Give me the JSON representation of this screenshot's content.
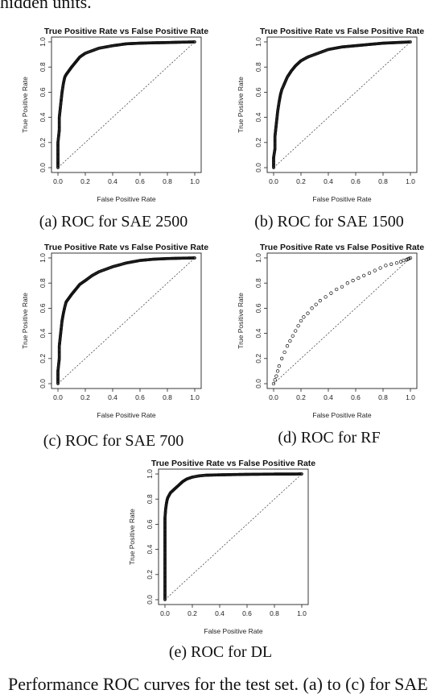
{
  "page": {
    "fragment_top": "hidden units.",
    "fragment_bottom": "Performance ROC curves for the test set. (a) to (c) for SAE"
  },
  "chart_data": [
    {
      "type": "scatter",
      "title": "True Positive Rate vs False Positive Rate",
      "xlabel": "False Positive Rate",
      "ylabel": "True Positive Rate",
      "caption": "(a) ROC for SAE 2500",
      "xlim": [
        0,
        1
      ],
      "ylim": [
        0,
        1
      ],
      "xticks": [
        "0.0",
        "0.2",
        "0.4",
        "0.6",
        "0.8",
        "1.0"
      ],
      "yticks": [
        "0.0",
        "0.2",
        "0.4",
        "0.6",
        "0.8",
        "1.0"
      ],
      "diagonal": true,
      "series": [
        {
          "x": [
            0.0,
            0.0,
            0.0,
            0.01,
            0.01,
            0.02,
            0.03,
            0.04,
            0.05,
            0.06,
            0.08,
            0.1,
            0.13,
            0.16,
            0.2,
            0.25,
            0.3,
            0.35,
            0.4,
            0.5,
            0.6,
            0.7,
            0.8,
            0.9,
            1.0
          ],
          "y": [
            0.0,
            0.1,
            0.2,
            0.3,
            0.4,
            0.5,
            0.6,
            0.67,
            0.72,
            0.74,
            0.77,
            0.8,
            0.84,
            0.88,
            0.91,
            0.93,
            0.95,
            0.96,
            0.97,
            0.985,
            0.99,
            0.993,
            0.995,
            0.998,
            1.0
          ],
          "marker": "open-circle",
          "density": "dense"
        }
      ]
    },
    {
      "type": "scatter",
      "title": "True Positive Rate vs False Positive Rate",
      "xlabel": "False Positive Rate",
      "ylabel": "True Positive Rate",
      "caption": "(b) ROC for SAE 1500",
      "xlim": [
        0,
        1
      ],
      "ylim": [
        0,
        1
      ],
      "xticks": [
        "0.0",
        "0.2",
        "0.4",
        "0.6",
        "0.8",
        "1.0"
      ],
      "yticks": [
        "0.0",
        "0.2",
        "0.4",
        "0.6",
        "0.8",
        "1.0"
      ],
      "diagonal": true,
      "series": [
        {
          "x": [
            0.0,
            0.0,
            0.01,
            0.01,
            0.02,
            0.03,
            0.04,
            0.05,
            0.06,
            0.08,
            0.1,
            0.13,
            0.16,
            0.2,
            0.25,
            0.3,
            0.35,
            0.4,
            0.5,
            0.6,
            0.7,
            0.8,
            0.9,
            1.0
          ],
          "y": [
            0.0,
            0.08,
            0.15,
            0.25,
            0.35,
            0.45,
            0.52,
            0.58,
            0.62,
            0.67,
            0.72,
            0.77,
            0.81,
            0.85,
            0.88,
            0.9,
            0.92,
            0.94,
            0.96,
            0.97,
            0.98,
            0.99,
            0.995,
            1.0
          ],
          "marker": "open-circle",
          "density": "dense"
        }
      ]
    },
    {
      "type": "scatter",
      "title": "True Positive Rate vs False Positive Rate",
      "xlabel": "False Positive Rate",
      "ylabel": "True Positive Rate",
      "caption": "(c) ROC for SAE 700",
      "xlim": [
        0,
        1
      ],
      "ylim": [
        0,
        1
      ],
      "xticks": [
        "0.0",
        "0.2",
        "0.4",
        "0.6",
        "0.8",
        "1.0"
      ],
      "yticks": [
        "0.0",
        "0.2",
        "0.4",
        "0.6",
        "0.8",
        "1.0"
      ],
      "diagonal": true,
      "series": [
        {
          "x": [
            0.0,
            0.0,
            0.01,
            0.01,
            0.02,
            0.03,
            0.04,
            0.05,
            0.06,
            0.08,
            0.1,
            0.13,
            0.16,
            0.2,
            0.25,
            0.3,
            0.35,
            0.4,
            0.5,
            0.6,
            0.7,
            0.8,
            0.9,
            1.0
          ],
          "y": [
            0.0,
            0.1,
            0.2,
            0.3,
            0.4,
            0.5,
            0.56,
            0.61,
            0.65,
            0.68,
            0.71,
            0.75,
            0.79,
            0.82,
            0.86,
            0.89,
            0.91,
            0.93,
            0.96,
            0.98,
            0.99,
            0.995,
            0.998,
            1.0
          ],
          "marker": "open-circle",
          "density": "dense"
        }
      ]
    },
    {
      "type": "scatter",
      "title": "True Positive Rate vs False Positive Rate",
      "xlabel": "False Positive Rate",
      "ylabel": "True Positive Rate",
      "caption": "(d) ROC for RF",
      "xlim": [
        0,
        1
      ],
      "ylim": [
        0,
        1
      ],
      "xticks": [
        "0.0",
        "0.2",
        "0.4",
        "0.6",
        "0.8",
        "1.0"
      ],
      "yticks": [
        "0.0",
        "0.2",
        "0.4",
        "0.6",
        "0.8",
        "1.0"
      ],
      "diagonal": true,
      "series": [
        {
          "x": [
            0.0,
            0.01,
            0.02,
            0.03,
            0.04,
            0.06,
            0.08,
            0.1,
            0.12,
            0.14,
            0.16,
            0.18,
            0.2,
            0.22,
            0.25,
            0.28,
            0.31,
            0.34,
            0.38,
            0.42,
            0.46,
            0.5,
            0.54,
            0.58,
            0.62,
            0.66,
            0.7,
            0.74,
            0.78,
            0.82,
            0.86,
            0.9,
            0.93,
            0.95,
            0.97,
            0.98,
            0.99,
            1.0
          ],
          "y": [
            0.0,
            0.03,
            0.06,
            0.1,
            0.14,
            0.2,
            0.25,
            0.3,
            0.34,
            0.38,
            0.42,
            0.46,
            0.5,
            0.53,
            0.56,
            0.6,
            0.63,
            0.66,
            0.69,
            0.72,
            0.75,
            0.77,
            0.8,
            0.82,
            0.84,
            0.86,
            0.88,
            0.9,
            0.92,
            0.94,
            0.95,
            0.96,
            0.97,
            0.98,
            0.985,
            0.99,
            0.995,
            1.0
          ],
          "marker": "open-circle",
          "density": "sparse"
        }
      ]
    },
    {
      "type": "scatter",
      "title": "True Positive Rate vs False Positive Rate",
      "xlabel": "False Positive Rate",
      "ylabel": "True Positive Rate",
      "caption": "(e) ROC for DL",
      "xlim": [
        0,
        1
      ],
      "ylim": [
        0,
        1
      ],
      "xticks": [
        "0.0",
        "0.2",
        "0.4",
        "0.6",
        "0.8",
        "1.0"
      ],
      "yticks": [
        "0.0",
        "0.2",
        "0.4",
        "0.6",
        "0.8",
        "1.0"
      ],
      "diagonal": true,
      "series": [
        {
          "x": [
            0.0,
            0.0,
            0.0,
            0.0,
            0.0,
            0.005,
            0.01,
            0.015,
            0.02,
            0.03,
            0.04,
            0.06,
            0.08,
            0.1,
            0.13,
            0.16,
            0.2,
            0.25,
            0.3,
            0.4,
            0.5,
            0.6,
            0.7,
            0.8,
            0.9,
            1.0
          ],
          "y": [
            0.0,
            0.2,
            0.4,
            0.55,
            0.65,
            0.72,
            0.76,
            0.79,
            0.81,
            0.83,
            0.85,
            0.87,
            0.89,
            0.91,
            0.94,
            0.96,
            0.975,
            0.985,
            0.99,
            0.993,
            0.995,
            0.997,
            0.998,
            0.999,
            0.999,
            1.0
          ],
          "marker": "open-circle",
          "density": "dense"
        }
      ]
    }
  ]
}
